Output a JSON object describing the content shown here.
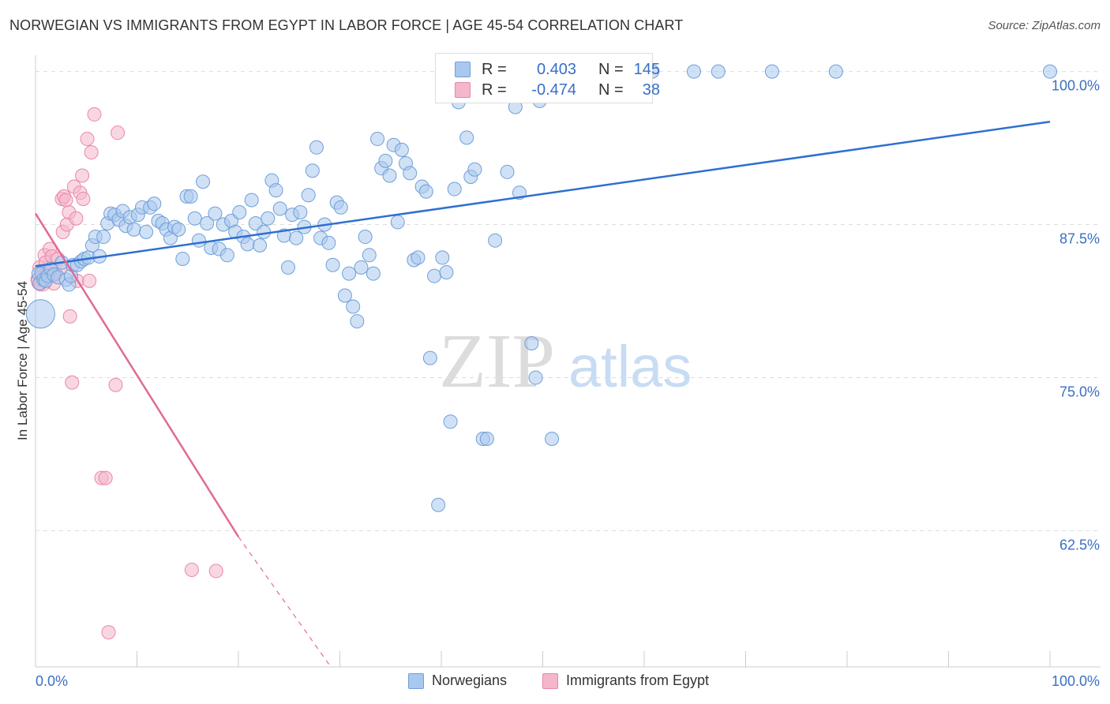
{
  "title": "NORWEGIAN VS IMMIGRANTS FROM EGYPT IN LABOR FORCE | AGE 45-54 CORRELATION CHART",
  "source": "Source: ZipAtlas.com",
  "watermark": {
    "zip": "ZIP",
    "atlas": "atlas"
  },
  "legend_stats": [
    {
      "r_label": "R =",
      "r_value": "0.403",
      "n_label": "N =",
      "n_value": "145"
    },
    {
      "r_label": "R =",
      "r_value": "-0.474",
      "n_label": "N =",
      "n_value": "38"
    }
  ],
  "bottom_legend": [
    {
      "label": "Norwegians"
    },
    {
      "label": "Immigrants from Egypt"
    }
  ],
  "colors": {
    "blue_fill": "#a9c8ef",
    "blue_stroke": "#6f9fd8",
    "blue_line": "#2f6fd0",
    "pink_fill": "#f4b6cb",
    "pink_stroke": "#e987a8",
    "pink_line": "#e06a98",
    "axis_label": "#3a6fc4",
    "grid": "#dddddd"
  },
  "chart_data": {
    "type": "scatter",
    "ylabel": "In Labor Force | Age 45-54",
    "xlim": [
      0,
      100
    ],
    "ylim": [
      51.5,
      101.2
    ],
    "x_tick_labels": [
      {
        "value": 0,
        "label": "0.0%"
      },
      {
        "value": 100,
        "label": "100.0%"
      }
    ],
    "y_tick_labels": [
      {
        "value": 100,
        "label": "100.0%"
      },
      {
        "value": 87.5,
        "label": "87.5%"
      },
      {
        "value": 75,
        "label": "75.0%"
      },
      {
        "value": 62.5,
        "label": "62.5%"
      }
    ],
    "grid": true,
    "series": [
      {
        "name": "Norwegians",
        "r": 0.403,
        "n": 145,
        "trend": {
          "x": [
            0,
            100
          ],
          "y": [
            84.1,
            95.9
          ]
        },
        "points": [
          [
            0.3,
            83.5
          ],
          [
            0.4,
            82.7
          ],
          [
            0.6,
            83.5
          ],
          [
            0.8,
            83.0
          ],
          [
            1.0,
            82.9
          ],
          [
            1.2,
            83.3
          ],
          [
            1.5,
            83.9
          ],
          [
            1.8,
            83.4
          ],
          [
            2.2,
            83.2
          ],
          [
            2.6,
            84.4
          ],
          [
            3.0,
            83.0
          ],
          [
            3.3,
            82.6
          ],
          [
            3.5,
            83.3
          ],
          [
            3.7,
            84.2
          ],
          [
            4.1,
            84.2
          ],
          [
            4.5,
            84.5
          ],
          [
            4.8,
            84.7
          ],
          [
            5.2,
            84.8
          ],
          [
            5.6,
            85.8
          ],
          [
            5.9,
            86.5
          ],
          [
            6.3,
            84.9
          ],
          [
            6.7,
            86.5
          ],
          [
            7.1,
            87.6
          ],
          [
            7.4,
            88.4
          ],
          [
            7.8,
            88.3
          ],
          [
            8.2,
            87.9
          ],
          [
            8.6,
            88.6
          ],
          [
            8.9,
            87.4
          ],
          [
            9.3,
            88.1
          ],
          [
            9.7,
            87.1
          ],
          [
            10.1,
            88.3
          ],
          [
            10.5,
            88.9
          ],
          [
            10.9,
            86.9
          ],
          [
            11.3,
            88.9
          ],
          [
            11.7,
            89.2
          ],
          [
            12.1,
            87.8
          ],
          [
            12.5,
            87.6
          ],
          [
            12.9,
            87.1
          ],
          [
            13.3,
            86.4
          ],
          [
            13.7,
            87.3
          ],
          [
            14.1,
            87.1
          ],
          [
            14.5,
            84.7
          ],
          [
            14.9,
            89.8
          ],
          [
            15.3,
            89.8
          ],
          [
            15.7,
            88.0
          ],
          [
            16.1,
            86.2
          ],
          [
            16.5,
            91.0
          ],
          [
            16.9,
            87.6
          ],
          [
            17.3,
            85.6
          ],
          [
            17.7,
            88.4
          ],
          [
            18.1,
            85.5
          ],
          [
            18.5,
            87.5
          ],
          [
            18.9,
            85.0
          ],
          [
            19.3,
            87.8
          ],
          [
            19.7,
            86.9
          ],
          [
            20.1,
            88.5
          ],
          [
            20.5,
            86.5
          ],
          [
            20.9,
            85.9
          ],
          [
            21.3,
            89.5
          ],
          [
            21.7,
            87.6
          ],
          [
            22.1,
            85.8
          ],
          [
            22.5,
            86.9
          ],
          [
            22.9,
            88.0
          ],
          [
            23.3,
            91.1
          ],
          [
            23.7,
            90.3
          ],
          [
            24.1,
            88.8
          ],
          [
            24.5,
            86.6
          ],
          [
            24.9,
            84.0
          ],
          [
            25.3,
            88.3
          ],
          [
            25.7,
            86.4
          ],
          [
            26.1,
            88.5
          ],
          [
            26.5,
            87.3
          ],
          [
            26.9,
            89.9
          ],
          [
            27.3,
            91.9
          ],
          [
            27.7,
            93.8
          ],
          [
            28.1,
            86.4
          ],
          [
            28.5,
            87.5
          ],
          [
            28.9,
            86.0
          ],
          [
            29.3,
            84.2
          ],
          [
            29.7,
            89.3
          ],
          [
            30.1,
            88.9
          ],
          [
            30.5,
            81.7
          ],
          [
            30.9,
            83.5
          ],
          [
            31.3,
            80.8
          ],
          [
            31.7,
            79.6
          ],
          [
            32.1,
            84.0
          ],
          [
            32.5,
            86.5
          ],
          [
            32.9,
            85.0
          ],
          [
            33.3,
            83.5
          ],
          [
            33.7,
            94.5
          ],
          [
            34.1,
            92.1
          ],
          [
            34.5,
            92.7
          ],
          [
            34.9,
            91.5
          ],
          [
            35.3,
            94.0
          ],
          [
            35.7,
            87.7
          ],
          [
            36.1,
            93.6
          ],
          [
            36.5,
            92.5
          ],
          [
            36.9,
            91.7
          ],
          [
            37.3,
            84.6
          ],
          [
            37.7,
            84.8
          ],
          [
            38.1,
            90.6
          ],
          [
            38.5,
            90.2
          ],
          [
            38.9,
            76.6
          ],
          [
            39.3,
            83.3
          ],
          [
            39.7,
            64.6
          ],
          [
            40.1,
            84.8
          ],
          [
            40.5,
            83.6
          ],
          [
            40.9,
            71.4
          ],
          [
            41.3,
            90.4
          ],
          [
            41.7,
            97.5
          ],
          [
            42.1,
            99.0
          ],
          [
            42.5,
            94.6
          ],
          [
            42.9,
            91.4
          ],
          [
            43.3,
            92.0
          ],
          [
            43.7,
            100.0
          ],
          [
            44.1,
            70.0
          ],
          [
            44.5,
            70.0
          ],
          [
            44.9,
            100.0
          ],
          [
            45.3,
            86.2
          ],
          [
            45.7,
            100.0
          ],
          [
            46.1,
            99.1
          ],
          [
            46.5,
            91.8
          ],
          [
            46.9,
            100.0
          ],
          [
            47.3,
            97.1
          ],
          [
            47.7,
            90.1
          ],
          [
            48.1,
            98.0
          ],
          [
            48.5,
            100.0
          ],
          [
            48.9,
            77.8
          ],
          [
            49.3,
            75.0
          ],
          [
            49.7,
            97.6
          ],
          [
            50.1,
            100.0
          ],
          [
            50.5,
            100.0
          ],
          [
            50.9,
            70.0
          ],
          [
            53.6,
            100.0
          ],
          [
            56.2,
            100.0
          ],
          [
            58.0,
            100.0
          ],
          [
            60.8,
            100.0
          ],
          [
            64.9,
            100.0
          ],
          [
            67.3,
            100.0
          ],
          [
            72.6,
            100.0
          ],
          [
            78.9,
            100.0
          ],
          [
            100.0,
            100.0
          ]
        ]
      },
      {
        "name": "Immigrants from Egypt",
        "r": -0.474,
        "n": 38,
        "trend": {
          "x": [
            0,
            20
          ],
          "y": [
            88.4,
            62.0
          ]
        },
        "trend_dashed": {
          "x": [
            20,
            29
          ],
          "y": [
            62.0,
            51.5
          ]
        },
        "points": [
          [
            0.2,
            83.0
          ],
          [
            0.4,
            84.0
          ],
          [
            0.5,
            82.7
          ],
          [
            0.7,
            83.3
          ],
          [
            0.9,
            85.0
          ],
          [
            1.0,
            84.4
          ],
          [
            1.2,
            83.6
          ],
          [
            1.4,
            85.5
          ],
          [
            1.6,
            84.9
          ],
          [
            1.8,
            82.7
          ],
          [
            2.0,
            83.5
          ],
          [
            2.2,
            84.7
          ],
          [
            2.4,
            83.9
          ],
          [
            2.6,
            89.6
          ],
          [
            2.7,
            86.9
          ],
          [
            2.8,
            89.8
          ],
          [
            3.0,
            89.5
          ],
          [
            3.1,
            87.5
          ],
          [
            3.3,
            88.5
          ],
          [
            3.4,
            80.0
          ],
          [
            3.6,
            74.6
          ],
          [
            3.8,
            90.6
          ],
          [
            4.0,
            88.0
          ],
          [
            4.1,
            82.9
          ],
          [
            4.4,
            90.1
          ],
          [
            4.6,
            91.5
          ],
          [
            4.7,
            89.6
          ],
          [
            5.1,
            94.5
          ],
          [
            5.3,
            82.9
          ],
          [
            5.5,
            93.4
          ],
          [
            5.8,
            96.5
          ],
          [
            6.5,
            66.8
          ],
          [
            6.9,
            66.8
          ],
          [
            7.2,
            54.2
          ],
          [
            7.9,
            74.4
          ],
          [
            8.1,
            95.0
          ],
          [
            15.4,
            59.3
          ],
          [
            17.8,
            59.2
          ]
        ]
      }
    ]
  }
}
